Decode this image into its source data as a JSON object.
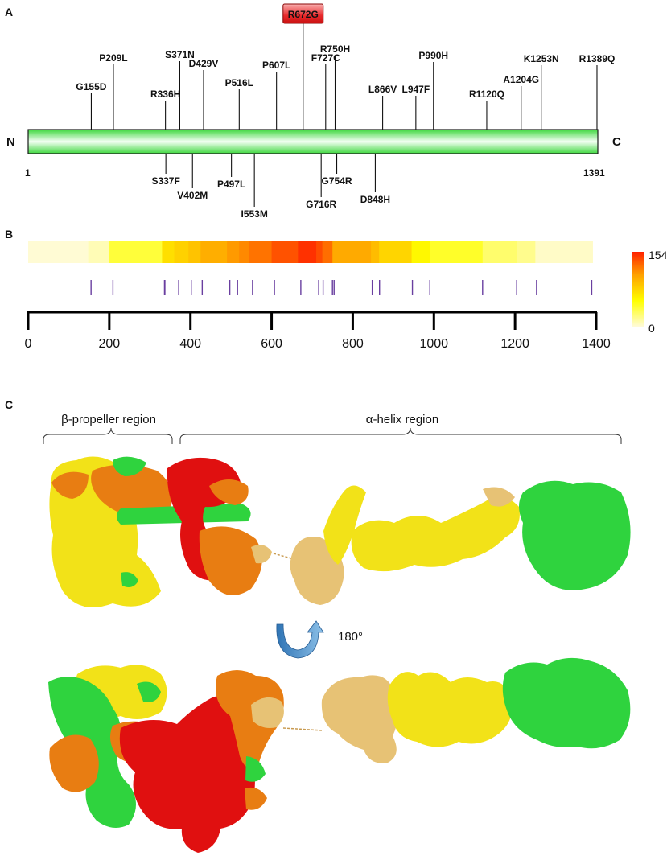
{
  "panels": {
    "a": "A",
    "b": "B",
    "c": "C"
  },
  "protein": {
    "n_label": "N",
    "c_label": "C",
    "start_label": "1",
    "end_label": "1391",
    "length": 1391,
    "bar_color": "#4be84b",
    "highlight": {
      "label": "R672G",
      "pos": 672,
      "color": "#e8292b"
    },
    "mutations_top": [
      {
        "label": "G155D",
        "pos": 155
      },
      {
        "label": "P209L",
        "pos": 209
      },
      {
        "label": "R336H",
        "pos": 336
      },
      {
        "label": "S371N",
        "pos": 371
      },
      {
        "label": "D429V",
        "pos": 429
      },
      {
        "label": "P516L",
        "pos": 516
      },
      {
        "label": "P607L",
        "pos": 607
      },
      {
        "label": "F727C",
        "pos": 727
      },
      {
        "label": "R750H",
        "pos": 750
      },
      {
        "label": "L866V",
        "pos": 866
      },
      {
        "label": "L947F",
        "pos": 947
      },
      {
        "label": "P990H",
        "pos": 990
      },
      {
        "label": "R1120Q",
        "pos": 1120
      },
      {
        "label": "A1204G",
        "pos": 1204
      },
      {
        "label": "K1253N",
        "pos": 1253
      },
      {
        "label": "R1389Q",
        "pos": 1389
      }
    ],
    "mutations_bottom": [
      {
        "label": "S337F",
        "pos": 337
      },
      {
        "label": "V402M",
        "pos": 402
      },
      {
        "label": "P497L",
        "pos": 497
      },
      {
        "label": "I553M",
        "pos": 553
      },
      {
        "label": "G716R",
        "pos": 716
      },
      {
        "label": "G754R",
        "pos": 754
      },
      {
        "label": "D848H",
        "pos": 848
      }
    ]
  },
  "chart_data": {
    "type": "heatmap",
    "xlim": [
      0,
      1400
    ],
    "x_ticks": [
      "0",
      "200",
      "400",
      "600",
      "800",
      "1000",
      "1200",
      "1400"
    ],
    "colorbar": {
      "max_label": "154",
      "min_label": "0",
      "min": 0,
      "max": 154,
      "colors": [
        "#fffbe0",
        "#ffff00",
        "#ffa000",
        "#ff2000"
      ]
    },
    "segments": [
      {
        "start": 0,
        "end": 148,
        "value": 3
      },
      {
        "start": 148,
        "end": 200,
        "value": 10
      },
      {
        "start": 200,
        "end": 330,
        "value": 40
      },
      {
        "start": 330,
        "end": 360,
        "value": 72
      },
      {
        "start": 360,
        "end": 395,
        "value": 80
      },
      {
        "start": 395,
        "end": 425,
        "value": 88
      },
      {
        "start": 425,
        "end": 490,
        "value": 100
      },
      {
        "start": 490,
        "end": 520,
        "value": 110
      },
      {
        "start": 520,
        "end": 545,
        "value": 116
      },
      {
        "start": 545,
        "end": 600,
        "value": 124
      },
      {
        "start": 600,
        "end": 665,
        "value": 136
      },
      {
        "start": 665,
        "end": 710,
        "value": 148
      },
      {
        "start": 710,
        "end": 725,
        "value": 138
      },
      {
        "start": 725,
        "end": 750,
        "value": 126
      },
      {
        "start": 750,
        "end": 845,
        "value": 102
      },
      {
        "start": 845,
        "end": 865,
        "value": 92
      },
      {
        "start": 865,
        "end": 945,
        "value": 78
      },
      {
        "start": 945,
        "end": 990,
        "value": 58
      },
      {
        "start": 990,
        "end": 1120,
        "value": 44
      },
      {
        "start": 1120,
        "end": 1205,
        "value": 28
      },
      {
        "start": 1205,
        "end": 1250,
        "value": 20
      },
      {
        "start": 1250,
        "end": 1391,
        "value": 6
      }
    ],
    "mutation_positions": [
      155,
      209,
      336,
      337,
      371,
      402,
      429,
      497,
      516,
      553,
      607,
      672,
      716,
      727,
      750,
      754,
      848,
      866,
      947,
      990,
      1120,
      1204,
      1253,
      1389
    ],
    "tick_color": "#6a3fa0"
  },
  "structure": {
    "beta_label": "β-propeller region",
    "alpha_label": "α-helix region",
    "rotation_label": "180°",
    "colors": {
      "red": "#e01010",
      "orange": "#e87d12",
      "yellow": "#f2e218",
      "tan": "#e7c275",
      "green": "#2fd33e",
      "arrow": "#3c89c8"
    }
  }
}
